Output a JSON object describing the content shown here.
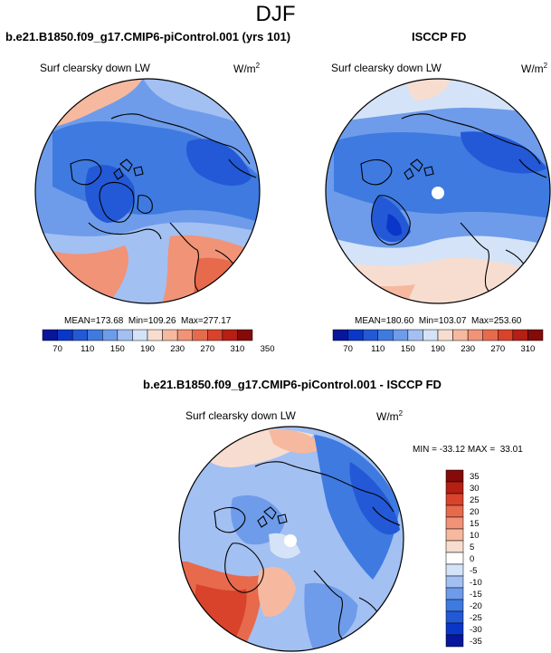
{
  "main_title": "DJF",
  "panels": [
    {
      "case_title": "b.e21.B1850.f09_g17.CMIP6-piControl.001 (yrs 101)",
      "variable": "Surf clearsky down LW",
      "units": "W/m",
      "units_exp": "2",
      "mean_label": "MEAN=",
      "mean_value": "173.68",
      "min_label": "Min=",
      "min_value": "109.26",
      "max_label": "Max=",
      "max_value": "277.17"
    },
    {
      "case_title": "ISCCP FD",
      "variable": "Surf clearsky down LW",
      "units": "W/m",
      "units_exp": "2",
      "mean_label": "MEAN=",
      "mean_value": "180.60",
      "min_label": "Min=",
      "min_value": "103.07",
      "max_label": "Max=",
      "max_value": "253.60"
    }
  ],
  "horizontal_colorbar": {
    "ticks": [
      "70",
      "110",
      "150",
      "190",
      "230",
      "270",
      "310",
      "350"
    ],
    "colors": [
      "#07169b",
      "#0b37c8",
      "#2359d6",
      "#3e7ae0",
      "#6e9cea",
      "#a3c0f2",
      "#d4e3f7",
      "#f7ddd0",
      "#f6b99f",
      "#f19377",
      "#e86a4d",
      "#d9432b",
      "#b51f14",
      "#850a0a"
    ]
  },
  "diff_panel": {
    "title": "b.e21.B1850.f09_g17.CMIP6-piControl.001 - ISCCP FD",
    "variable": "Surf clearsky down LW",
    "units": "W/m",
    "units_exp": "2",
    "min_label": "MIN =",
    "min_value": "-33.12",
    "max_label": "MAX =",
    "max_value": "33.01"
  },
  "vertical_colorbar": {
    "ticks": [
      "35",
      "30",
      "25",
      "20",
      "15",
      "10",
      "5",
      "0",
      "-5",
      "-10",
      "-15",
      "-20",
      "-25",
      "-30",
      "-35"
    ],
    "colors": [
      "#850a0a",
      "#b51f14",
      "#d9432b",
      "#e86a4d",
      "#f19377",
      "#f6b99f",
      "#f7ddd0",
      "#ffffff",
      "#d4e3f7",
      "#a3c0f2",
      "#6e9cea",
      "#3e7ae0",
      "#2359d6",
      "#0b37c8",
      "#07169b"
    ]
  }
}
